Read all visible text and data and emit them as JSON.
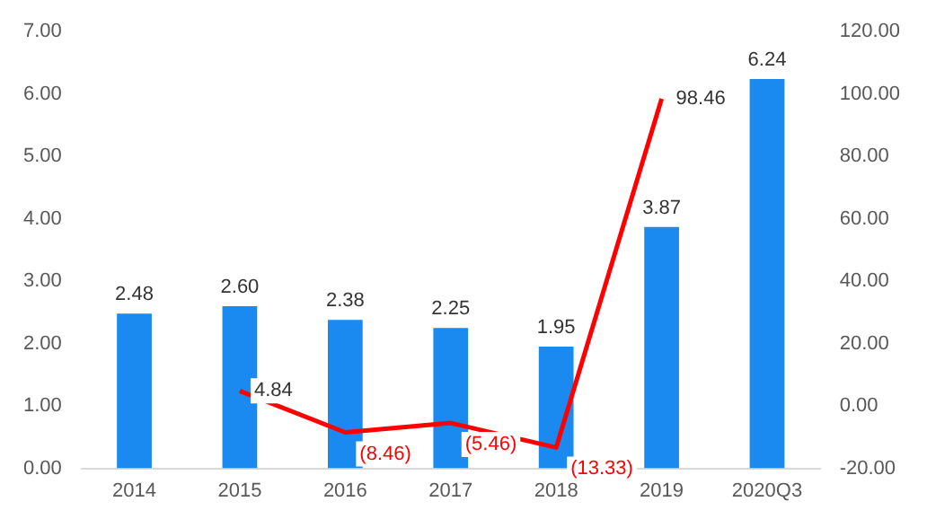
{
  "chart_data": {
    "type": "bar",
    "categories": [
      "2014",
      "2015",
      "2016",
      "2017",
      "2018",
      "2019",
      "2020Q3"
    ],
    "series": [
      {
        "color": "#1b8af0",
        "values": [
          2.48,
          2.6,
          2.38,
          2.25,
          1.95,
          3.87,
          6.24
        ],
        "value_labels": [
          "2.48",
          "2.60",
          "2.38",
          "2.25",
          "1.95",
          "3.87",
          "6.24"
        ]
      },
      {
        "type": "line",
        "axis": "y2",
        "color": "#ff0000",
        "values": [
          null,
          4.84,
          -8.46,
          -5.46,
          -13.33,
          98.46,
          null
        ],
        "value_labels": [
          null,
          "4.84",
          "(8.46)",
          "(5.46)",
          "(13.33)",
          "98.46",
          null
        ]
      }
    ],
    "ylim": [
      0,
      7
    ],
    "yticks": [
      {
        "value": 0,
        "label": "0.00"
      },
      {
        "value": 1,
        "label": "1.00"
      },
      {
        "value": 2,
        "label": "2.00"
      },
      {
        "value": 3,
        "label": "3.00"
      },
      {
        "value": 4,
        "label": "4.00"
      },
      {
        "value": 5,
        "label": "5.00"
      },
      {
        "value": 6,
        "label": "6.00"
      },
      {
        "value": 7,
        "label": "7.00"
      }
    ],
    "y2lim": [
      -20,
      120
    ],
    "y2ticks": [
      {
        "value": -20,
        "label": "-20.00"
      },
      {
        "value": 0,
        "label": "0.00"
      },
      {
        "value": 20,
        "label": "20.00"
      },
      {
        "value": 40,
        "label": "40.00"
      },
      {
        "value": 60,
        "label": "60.00"
      },
      {
        "value": 80,
        "label": "80.00"
      },
      {
        "value": 100,
        "label": "100.00"
      },
      {
        "value": 120,
        "label": "120.00"
      }
    ],
    "grid": false,
    "legend": false,
    "marker": "none",
    "line_style": "solid"
  }
}
